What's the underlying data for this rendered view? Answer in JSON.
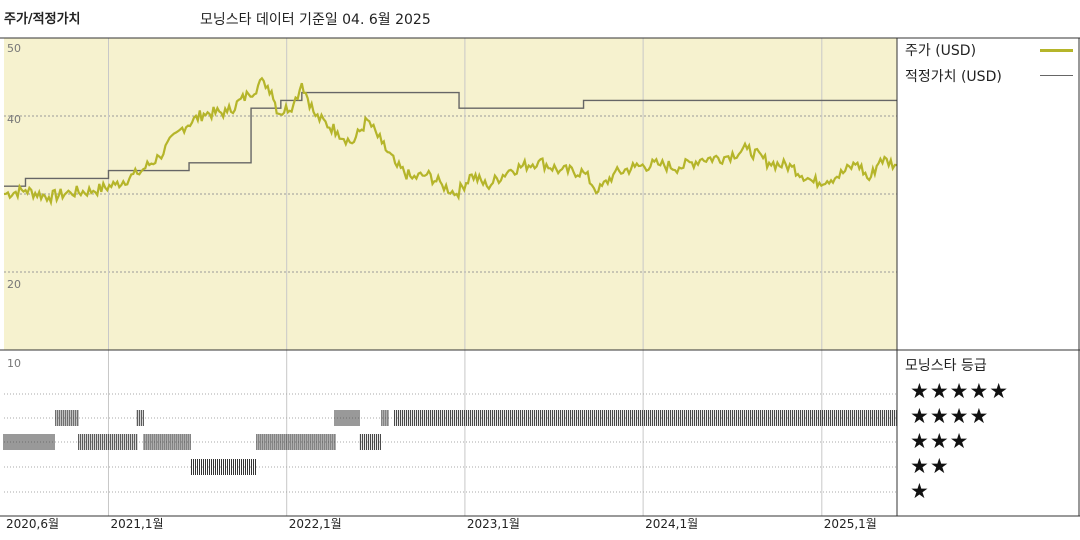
{
  "title": "주가/적정가치",
  "subtitle": "모닝스타 데이터 기준일 04. 6월 2025",
  "legend": {
    "price_label": "주가 (USD)",
    "fair_label": "적정가치 (USD)",
    "price_color": "#b5b52a",
    "fair_color": "#666666"
  },
  "rating": {
    "title": "모닝스타 등급",
    "levels": [
      "★★★★★",
      "★★★★",
      "★★★",
      "★★",
      "★"
    ]
  },
  "colors": {
    "plot_bg": "#f6f2cf",
    "grid": "#9a9a9a",
    "bar": "#333333"
  },
  "chart_data": {
    "type": "line",
    "title": "주가/적정가치",
    "x_range": [
      "2020-06-01",
      "2025-06-04"
    ],
    "ylim": [
      10,
      50
    ],
    "y_ticks": [
      10,
      20,
      40,
      50
    ],
    "x_ticks": [
      {
        "date": "2020-06-01",
        "label": "2020,6월"
      },
      {
        "date": "2021-01-01",
        "label": "2021,1월"
      },
      {
        "date": "2022-01-01",
        "label": "2022,1월"
      },
      {
        "date": "2023-01-01",
        "label": "2023,1월"
      },
      {
        "date": "2024-01-01",
        "label": "2024,1월"
      },
      {
        "date": "2025-01-01",
        "label": "2025,1월"
      }
    ],
    "series": [
      {
        "name": "주가 (USD)",
        "points": [
          [
            "2020-06-01",
            30.0
          ],
          [
            "2020-07-15",
            30.5
          ],
          [
            "2020-09-01",
            29.6
          ],
          [
            "2020-10-15",
            30.2
          ],
          [
            "2020-12-01",
            30.4
          ],
          [
            "2021-01-15",
            31.2
          ],
          [
            "2021-03-01",
            32.6
          ],
          [
            "2021-04-15",
            34.8
          ],
          [
            "2021-06-01",
            38.5
          ],
          [
            "2021-07-15",
            40.3
          ],
          [
            "2021-09-01",
            40.5
          ],
          [
            "2021-10-15",
            42.8
          ],
          [
            "2021-11-15",
            44.5
          ],
          [
            "2021-12-01",
            43.2
          ],
          [
            "2021-12-15",
            40.3
          ],
          [
            "2022-01-15",
            41.5
          ],
          [
            "2022-02-01",
            44.2
          ],
          [
            "2022-03-01",
            40.0
          ],
          [
            "2022-04-15",
            38.0
          ],
          [
            "2022-05-15",
            36.5
          ],
          [
            "2022-06-15",
            39.5
          ],
          [
            "2022-07-15",
            36.5
          ],
          [
            "2022-08-15",
            33.5
          ],
          [
            "2022-09-15",
            32.0
          ],
          [
            "2022-10-15",
            32.5
          ],
          [
            "2022-11-15",
            31.2
          ],
          [
            "2022-12-15",
            30.0
          ],
          [
            "2023-01-15",
            32.5
          ],
          [
            "2023-02-15",
            31.0
          ],
          [
            "2023-04-01",
            33.0
          ],
          [
            "2023-06-01",
            34.2
          ],
          [
            "2023-07-15",
            33.0
          ],
          [
            "2023-09-01",
            32.8
          ],
          [
            "2023-10-01",
            30.3
          ],
          [
            "2023-11-01",
            32.5
          ],
          [
            "2023-12-15",
            33.5
          ],
          [
            "2024-02-01",
            33.8
          ],
          [
            "2024-03-15",
            33.4
          ],
          [
            "2024-05-01",
            34.5
          ],
          [
            "2024-06-15",
            34.7
          ],
          [
            "2024-08-01",
            35.8
          ],
          [
            "2024-09-15",
            34.0
          ],
          [
            "2024-11-01",
            33.5
          ],
          [
            "2024-12-15",
            31.5
          ],
          [
            "2025-02-01",
            32.2
          ],
          [
            "2025-03-15",
            34.0
          ],
          [
            "2025-04-08",
            31.8
          ],
          [
            "2025-05-01",
            34.5
          ],
          [
            "2025-06-04",
            33.7
          ]
        ]
      },
      {
        "name": "적정가치 (USD)",
        "steps": [
          [
            "2020-06-01",
            31.0
          ],
          [
            "2020-07-15",
            32.0
          ],
          [
            "2021-01-01",
            33.0
          ],
          [
            "2021-06-15",
            34.0
          ],
          [
            "2021-10-20",
            41.0
          ],
          [
            "2021-12-20",
            42.0
          ],
          [
            "2022-02-01",
            43.0
          ],
          [
            "2022-12-20",
            41.0
          ],
          [
            "2023-09-01",
            42.0
          ],
          [
            "2025-06-04",
            42.0
          ]
        ]
      }
    ],
    "rating_history": {
      "levels": [
        5,
        4,
        3,
        2,
        1
      ],
      "spans": [
        {
          "from": "2020-06-01",
          "to": "2020-09-15",
          "stars": 3
        },
        {
          "from": "2020-09-15",
          "to": "2020-11-01",
          "stars": 4
        },
        {
          "from": "2020-11-01",
          "to": "2021-03-01",
          "stars": 3
        },
        {
          "from": "2021-03-01",
          "to": "2021-03-15",
          "stars": 4
        },
        {
          "from": "2021-03-15",
          "to": "2021-06-20",
          "stars": 3
        },
        {
          "from": "2021-06-20",
          "to": "2021-11-01",
          "stars": 2
        },
        {
          "from": "2021-11-01",
          "to": "2022-04-10",
          "stars": 3
        },
        {
          "from": "2022-04-10",
          "to": "2022-06-01",
          "stars": 4
        },
        {
          "from": "2022-06-01",
          "to": "2022-07-15",
          "stars": 3
        },
        {
          "from": "2022-07-15",
          "to": "2022-07-30",
          "stars": 4
        },
        {
          "from": "2022-08-10",
          "to": "2025-06-04",
          "stars": 4
        }
      ]
    }
  }
}
